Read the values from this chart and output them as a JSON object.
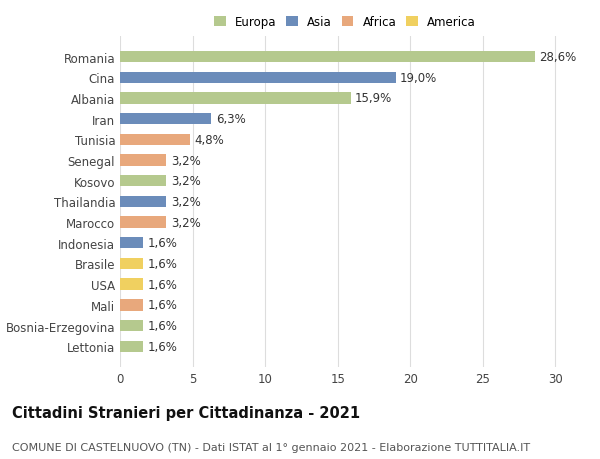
{
  "countries": [
    "Romania",
    "Cina",
    "Albania",
    "Iran",
    "Tunisia",
    "Senegal",
    "Kosovo",
    "Thailandia",
    "Marocco",
    "Indonesia",
    "Brasile",
    "USA",
    "Mali",
    "Bosnia-Erzegovina",
    "Lettonia"
  ],
  "values": [
    28.6,
    19.0,
    15.9,
    6.3,
    4.8,
    3.2,
    3.2,
    3.2,
    3.2,
    1.6,
    1.6,
    1.6,
    1.6,
    1.6,
    1.6
  ],
  "labels": [
    "28,6%",
    "19,0%",
    "15,9%",
    "6,3%",
    "4,8%",
    "3,2%",
    "3,2%",
    "3,2%",
    "3,2%",
    "1,6%",
    "1,6%",
    "1,6%",
    "1,6%",
    "1,6%",
    "1,6%"
  ],
  "continents": [
    "Europa",
    "Asia",
    "Europa",
    "Asia",
    "Africa",
    "Africa",
    "Europa",
    "Asia",
    "Africa",
    "Asia",
    "America",
    "America",
    "Africa",
    "Europa",
    "Europa"
  ],
  "continent_colors": {
    "Europa": "#b5c98e",
    "Asia": "#6b8cba",
    "Africa": "#e8a87c",
    "America": "#f0d060"
  },
  "legend_order": [
    "Europa",
    "Asia",
    "Africa",
    "America"
  ],
  "title": "Cittadini Stranieri per Cittadinanza - 2021",
  "subtitle": "COMUNE DI CASTELNUOVO (TN) - Dati ISTAT al 1° gennaio 2021 - Elaborazione TUTTITALIA.IT",
  "xlim": [
    0,
    31
  ],
  "xticks": [
    0,
    5,
    10,
    15,
    20,
    25,
    30
  ],
  "bg_color": "#ffffff",
  "grid_color": "#dddddd",
  "bar_height": 0.55,
  "label_fontsize": 8.5,
  "tick_fontsize": 8.5,
  "title_fontsize": 10.5,
  "subtitle_fontsize": 8.0
}
